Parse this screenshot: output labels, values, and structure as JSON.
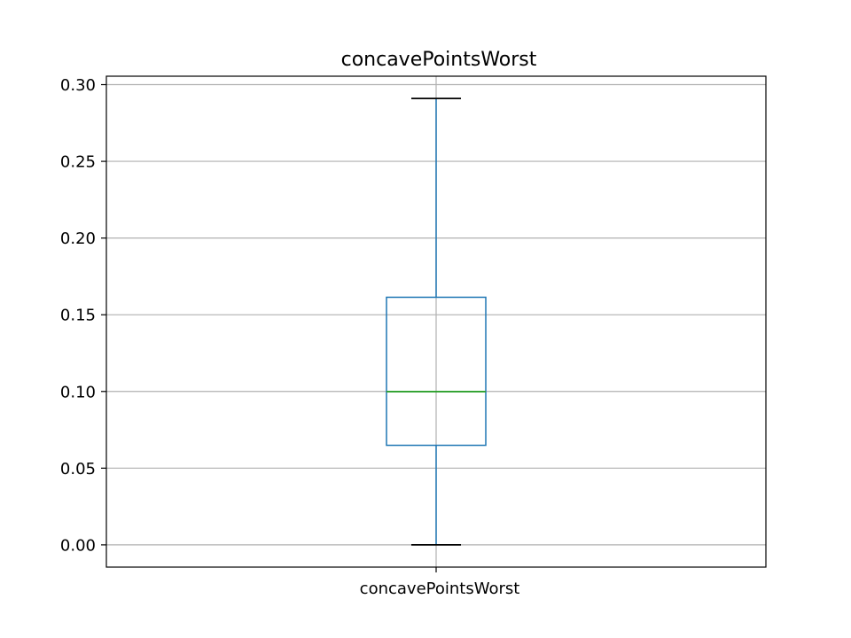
{
  "chart_data": {
    "type": "box",
    "title": "concavePointsWorst",
    "xlabel": "",
    "ylabel": "",
    "categories": [
      "concavePointsWorst"
    ],
    "ylim": [
      -0.0145,
      0.3055
    ],
    "yticks": [
      0.0,
      0.05,
      0.1,
      0.15,
      0.2,
      0.25,
      0.3
    ],
    "ytick_labels": [
      "0.00",
      "0.05",
      "0.10",
      "0.15",
      "0.20",
      "0.25",
      "0.30"
    ],
    "grid": true,
    "boxes": [
      {
        "category": "concavePointsWorst",
        "whisker_low": 0.0,
        "q1": 0.0649,
        "median": 0.0999,
        "q3": 0.1614,
        "whisker_high": 0.291
      }
    ],
    "colors": {
      "box": "#1f77b4",
      "median": "#2ca02c",
      "cap": "#000000",
      "grid": "#b0b0b0",
      "axis": "#000000"
    }
  }
}
